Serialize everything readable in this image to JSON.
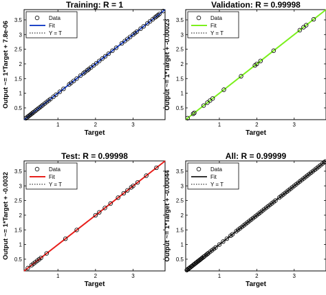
{
  "chart_data": [
    {
      "type": "scatter",
      "title": "Training: R = 1",
      "xlabel": "Target",
      "ylabel": "Output ~= 1*Target + 7.8e-06",
      "xlim": [
        0.1,
        3.85
      ],
      "ylim": [
        0.1,
        3.85
      ],
      "xticks": [
        1,
        2,
        3
      ],
      "yticks": [
        0.5,
        1,
        1.5,
        2,
        2.5,
        3,
        3.5
      ],
      "fit": {
        "slope": 1,
        "intercept": 7.8e-06
      },
      "fit_color": "#1f45c8",
      "legend": {
        "position": "top-left",
        "entries": [
          "Data",
          "Fit",
          "Y = T"
        ]
      },
      "series": [
        {
          "name": "Data",
          "x": [
            0.15,
            0.18,
            0.21,
            0.24,
            0.27,
            0.3,
            0.33,
            0.36,
            0.4,
            0.44,
            0.48,
            0.52,
            0.56,
            0.6,
            0.65,
            0.7,
            0.75,
            0.8,
            0.88,
            0.95,
            1.05,
            1.15,
            1.3,
            1.35,
            1.42,
            1.5,
            1.6,
            1.68,
            1.72,
            1.78,
            1.82,
            1.88,
            1.95,
            2.02,
            2.1,
            2.18,
            2.26,
            2.35,
            2.45,
            2.55,
            2.7,
            2.78,
            2.85,
            2.92,
            3.0,
            3.05,
            3.1,
            3.2,
            3.28,
            3.38,
            3.45,
            3.52,
            3.58,
            3.62,
            3.66,
            3.7,
            3.8
          ]
        }
      ]
    },
    {
      "type": "scatter",
      "title": "Validation: R = 0.99998",
      "xlabel": "Target",
      "ylabel": "Output ~= 1*Target + -0.00023",
      "xlim": [
        0.1,
        3.85
      ],
      "ylim": [
        0.1,
        3.85
      ],
      "xticks": [
        1,
        2,
        3
      ],
      "yticks": [
        0.5,
        1,
        1.5,
        2,
        2.5,
        3,
        3.5
      ],
      "fit": {
        "slope": 1,
        "intercept": -0.00023
      },
      "fit_color": "#7bf01c",
      "legend": {
        "position": "top-left",
        "entries": [
          "Data",
          "Fit",
          "Y = T"
        ]
      },
      "series": [
        {
          "name": "Data",
          "x": [
            0.15,
            0.3,
            0.33,
            0.58,
            0.68,
            0.75,
            0.82,
            1.12,
            1.58,
            1.95,
            2.0,
            2.1,
            2.45,
            3.15,
            3.25,
            3.32,
            3.52
          ]
        }
      ]
    },
    {
      "type": "scatter",
      "title": "Test: R = 0.99998",
      "xlabel": "Target",
      "ylabel": "Output ~= 1*Target + -0.0032",
      "xlim": [
        0.1,
        3.85
      ],
      "ylim": [
        0.1,
        3.85
      ],
      "xticks": [
        1,
        2,
        3
      ],
      "yticks": [
        0.5,
        1,
        1.5,
        2,
        2.5,
        3,
        3.5
      ],
      "fit": {
        "slope": 1,
        "intercept": -0.0032
      },
      "fit_color": "#e8201c",
      "legend": {
        "position": "top-left",
        "entries": [
          "Data",
          "Fit",
          "Y = T"
        ]
      },
      "series": [
        {
          "name": "Data",
          "x": [
            0.2,
            0.3,
            0.35,
            0.4,
            0.45,
            0.5,
            0.55,
            0.7,
            1.2,
            1.5,
            2.0,
            2.1,
            2.25,
            2.4,
            2.6,
            2.75,
            2.85,
            2.95,
            3.0,
            3.12,
            3.35,
            3.62
          ]
        }
      ]
    },
    {
      "type": "scatter",
      "title": "All: R = 0.99999",
      "xlabel": "Target",
      "ylabel": "Output ~= 1*Target + -0.00044",
      "xlim": [
        0.1,
        3.85
      ],
      "ylim": [
        0.1,
        3.85
      ],
      "xticks": [
        1,
        2,
        3
      ],
      "yticks": [
        0.5,
        1,
        1.5,
        2,
        2.5,
        3,
        3.5
      ],
      "fit": {
        "slope": 1,
        "intercept": -0.00044
      },
      "fit_color": "#333333",
      "legend": {
        "position": "top-left",
        "entries": [
          "Data",
          "Fit",
          "Y = T"
        ]
      },
      "series": [
        {
          "name": "Data",
          "x": [
            0.13,
            0.15,
            0.18,
            0.2,
            0.22,
            0.25,
            0.27,
            0.3,
            0.33,
            0.35,
            0.38,
            0.4,
            0.43,
            0.45,
            0.48,
            0.5,
            0.53,
            0.55,
            0.58,
            0.6,
            0.65,
            0.68,
            0.7,
            0.75,
            0.8,
            0.85,
            0.9,
            1.0,
            1.1,
            1.2,
            1.3,
            1.35,
            1.45,
            1.5,
            1.55,
            1.6,
            1.65,
            1.7,
            1.75,
            1.8,
            1.85,
            1.9,
            1.95,
            2.0,
            2.05,
            2.1,
            2.15,
            2.2,
            2.25,
            2.3,
            2.35,
            2.4,
            2.45,
            2.5,
            2.6,
            2.65,
            2.7,
            2.75,
            2.8,
            2.85,
            2.9,
            2.95,
            3.0,
            3.05,
            3.1,
            3.15,
            3.2,
            3.25,
            3.3,
            3.35,
            3.4,
            3.45,
            3.5,
            3.55,
            3.6,
            3.65,
            3.7,
            3.75,
            3.8,
            3.83
          ]
        }
      ]
    }
  ]
}
